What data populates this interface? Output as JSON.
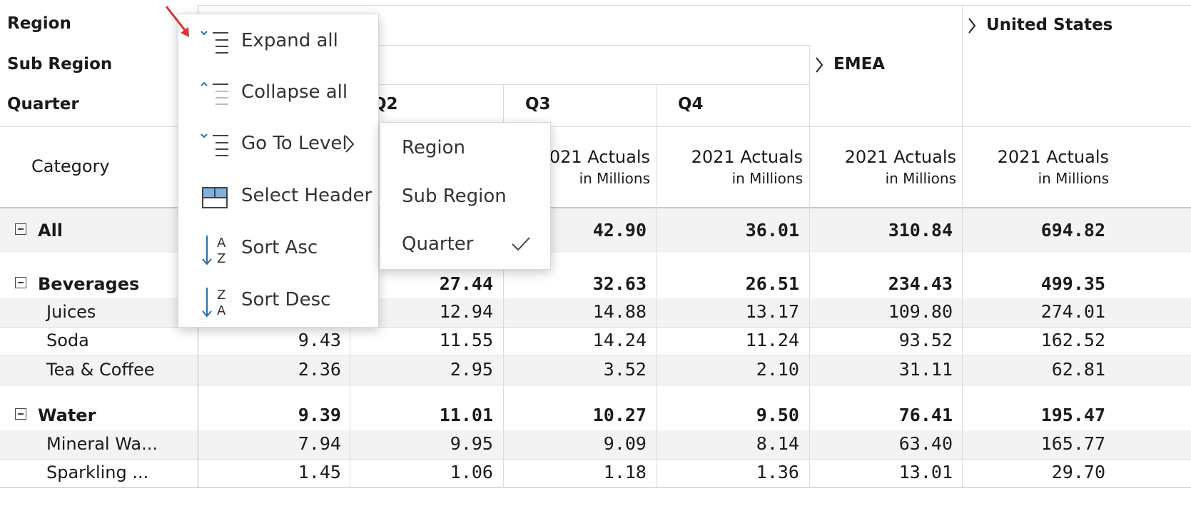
{
  "row_headers": {
    "region": "Region",
    "sub_region": "Sub Region",
    "quarter": "Quarter",
    "category": "Category"
  },
  "col_headers": {
    "united_states": "United States",
    "emea": "EMEA",
    "q2": "Q2",
    "q3": "Q3",
    "q4": "Q4",
    "measure_line1": "2021 Actuals",
    "measure_line1_clipped": "021 Actuals",
    "measure_line2": "in Millions"
  },
  "context_menu": {
    "expand_all": "Expand all",
    "collapse_all": "Collapse all",
    "go_to_level": "Go To Level",
    "select_header": "Select Header",
    "sort_asc": "Sort Asc",
    "sort_desc": "Sort Desc"
  },
  "level_submenu": {
    "items": [
      "Region",
      "Sub Region",
      "Quarter"
    ],
    "checked": "Quarter"
  },
  "rows": [
    {
      "label": "All",
      "bold": true,
      "values": [
        "",
        "",
        "42.90",
        "36.01",
        "310.84",
        "694.82"
      ]
    },
    {
      "label": "Beverages",
      "bold": true,
      "values": [
        "",
        "27.44",
        "32.63",
        "26.51",
        "234.43",
        "499.35"
      ]
    },
    {
      "label": "Juices",
      "bold": false,
      "values": [
        "",
        "12.94",
        "14.88",
        "13.17",
        "109.80",
        "274.01"
      ]
    },
    {
      "label": "Soda",
      "bold": false,
      "values": [
        "9.43",
        "11.55",
        "14.24",
        "11.24",
        "93.52",
        "162.52"
      ]
    },
    {
      "label": "Tea & Coffee",
      "bold": false,
      "values": [
        "2.36",
        "2.95",
        "3.52",
        "2.10",
        "31.11",
        "62.81"
      ]
    },
    {
      "label": "Water",
      "bold": true,
      "values": [
        "9.39",
        "11.01",
        "10.27",
        "9.50",
        "76.41",
        "195.47"
      ]
    },
    {
      "label": "Mineral Wa...",
      "bold": false,
      "values": [
        "7.94",
        "9.95",
        "9.09",
        "8.14",
        "63.40",
        "165.77"
      ]
    },
    {
      "label": "Sparkling ...",
      "bold": false,
      "values": [
        "1.45",
        "1.06",
        "1.18",
        "1.36",
        "13.01",
        "29.70"
      ]
    }
  ],
  "colors": {
    "accent_blue": "#2b6cb0",
    "annotation_arrow": "#e03131",
    "row_band": "#f3f3f3"
  }
}
